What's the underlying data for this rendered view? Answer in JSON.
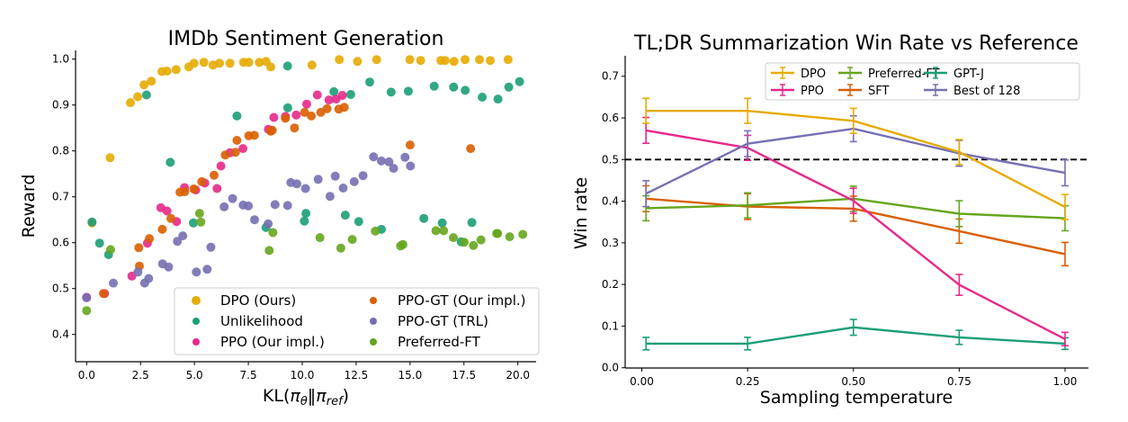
{
  "chart_data": [
    {
      "type": "scatter",
      "title": "IMDb Sentiment Generation",
      "xlabel": "KL(π_θ‖π_ref)",
      "ylabel": "Reward",
      "xlim": [
        -0.8,
        20.8
      ],
      "ylim": [
        0.34,
        1.02
      ],
      "xticks": [
        0.0,
        2.5,
        5.0,
        7.5,
        10.0,
        12.5,
        15.0,
        17.5,
        20.0
      ],
      "xtick_labels": [
        "0.0",
        "2.5",
        "5.0",
        "7.5",
        "10.0",
        "12.5",
        "15.0",
        "17.5",
        "20.0"
      ],
      "yticks": [
        0.4,
        0.5,
        0.6,
        0.7,
        0.8,
        0.9,
        1.0
      ],
      "ytick_labels": [
        "0.4",
        "0.5",
        "0.6",
        "0.7",
        "0.8",
        "0.9",
        "1.0"
      ],
      "grid": false,
      "legend_placement": "lower-right",
      "legend_columns": 2,
      "series": [
        {
          "name": "DPO (Ours)",
          "color": "#E6AB02",
          "x": [
            0.25,
            1.09,
            2.03,
            2.37,
            2.66,
            3.0,
            3.49,
            3.73,
            4.15,
            4.74,
            4.98,
            5.44,
            5.86,
            6.16,
            6.65,
            7.28,
            7.52,
            8.01,
            8.32,
            8.54,
            10.45,
            11.72,
            12.56,
            13.45,
            14.99,
            15.49,
            16.43,
            16.63,
            17.04,
            17.55,
            18.22,
            18.72,
            19.55
          ],
          "y": [
            0.643,
            0.785,
            0.905,
            0.918,
            0.944,
            0.952,
            0.973,
            0.974,
            0.977,
            0.983,
            0.991,
            0.993,
            0.987,
            0.991,
            0.991,
            0.993,
            0.993,
            0.993,
            0.995,
            0.983,
            0.987,
            0.999,
            0.995,
            0.999,
            0.999,
            0.997,
            0.997,
            0.997,
            0.995,
            0.999,
            0.999,
            0.997,
            0.999
          ]
        },
        {
          "name": "Unlikelihood",
          "color": "#1B9E77",
          "x": [
            0.25,
            0.6,
            1.02,
            2.78,
            3.88,
            4.95,
            6.97,
            8.32,
            9.32,
            9.33,
            10.1,
            10.17,
            11.47,
            12.0,
            12.25,
            12.62,
            13.13,
            13.67,
            14.12,
            14.92,
            15.64,
            16.12,
            16.49,
            17.02,
            17.37,
            17.56,
            17.87,
            18.35,
            19.08,
            19.58,
            20.08
          ],
          "y": [
            0.645,
            0.599,
            0.574,
            0.922,
            0.775,
            0.643,
            0.876,
            0.633,
            0.985,
            0.894,
            0.647,
            0.664,
            0.929,
            0.66,
            0.923,
            0.646,
            0.95,
            0.629,
            0.928,
            0.93,
            0.653,
            0.941,
            0.643,
            0.939,
            0.602,
            0.932,
            0.644,
            0.917,
            0.913,
            0.939,
            0.951
          ]
        },
        {
          "name": "PPO (Our impl.)",
          "color": "#E7298A",
          "x": [
            0.0,
            0.83,
            2.1,
            2.82,
            3.44,
            3.73,
            4.17,
            4.54,
            5.06,
            5.48,
            6.05,
            6.23,
            6.65,
            7.25,
            8.43,
            8.68,
            9.22,
            9.72,
            10.21,
            10.7,
            11.24,
            11.57,
            11.86
          ],
          "y": [
            0.481,
            0.489,
            0.527,
            0.599,
            0.676,
            0.669,
            0.646,
            0.72,
            0.715,
            0.73,
            0.718,
            0.767,
            0.796,
            0.805,
            0.847,
            0.873,
            0.875,
            0.878,
            0.902,
            0.922,
            0.911,
            0.913,
            0.921
          ]
        },
        {
          "name": "PPO-GT (Our impl.)",
          "color": "#D95F02",
          "x": [
            0.78,
            2.42,
            2.45,
            2.91,
            3.51,
            3.91,
            4.33,
            4.55,
            4.97,
            5.34,
            5.91,
            6.43,
            6.9,
            6.97,
            7.52,
            7.78,
            8.54,
            8.61,
            9.22,
            9.64,
            10.11,
            10.42,
            10.86,
            11.15,
            11.7,
            11.95,
            15.0,
            17.81
          ],
          "y": [
            0.489,
            0.589,
            0.549,
            0.609,
            0.629,
            0.653,
            0.71,
            0.711,
            0.717,
            0.733,
            0.747,
            0.791,
            0.797,
            0.823,
            0.833,
            0.834,
            0.843,
            0.845,
            0.871,
            0.85,
            0.884,
            0.876,
            0.884,
            0.892,
            0.891,
            0.895,
            0.813,
            0.805
          ]
        },
        {
          "name": "PPO-GT (TRL)",
          "color": "#7570B3",
          "x": [
            0.0,
            1.24,
            2.38,
            2.69,
            2.88,
            3.52,
            3.8,
            4.21,
            4.46,
            5.09,
            5.59,
            5.76,
            6.38,
            6.77,
            7.26,
            7.5,
            7.79,
            8.42,
            8.74,
            9.32,
            9.47,
            9.75,
            10.15,
            10.74,
            11.29,
            11.53,
            11.9,
            12.41,
            12.82,
            13.31,
            13.67,
            14.02,
            14.24,
            14.77,
            15.02
          ],
          "y": [
            0.48,
            0.512,
            0.536,
            0.512,
            0.522,
            0.554,
            0.547,
            0.603,
            0.615,
            0.536,
            0.542,
            0.59,
            0.678,
            0.696,
            0.682,
            0.68,
            0.65,
            0.641,
            0.683,
            0.681,
            0.731,
            0.728,
            0.718,
            0.738,
            0.701,
            0.745,
            0.719,
            0.733,
            0.746,
            0.787,
            0.778,
            0.776,
            0.762,
            0.786,
            0.767
          ]
        },
        {
          "name": "Preferred-FT",
          "color": "#66A61E",
          "x": [
            0.0,
            1.11,
            5.24,
            5.3,
            8.47,
            8.64,
            10.82,
            11.79,
            12.32,
            13.39,
            14.56,
            14.67,
            16.2,
            16.56,
            17.01,
            17.51,
            17.94,
            18.29,
            19.02,
            19.06,
            19.62,
            20.23
          ],
          "y": [
            0.452,
            0.585,
            0.664,
            0.645,
            0.583,
            0.622,
            0.611,
            0.588,
            0.607,
            0.625,
            0.593,
            0.596,
            0.626,
            0.626,
            0.611,
            0.601,
            0.594,
            0.606,
            0.62,
            0.62,
            0.613,
            0.618
          ]
        }
      ]
    },
    {
      "type": "line",
      "title": "TL;DR Summarization Win Rate vs Reference",
      "xlabel": "Sampling temperature",
      "ylabel": "Win rate",
      "xlim": [
        -0.04,
        1.04
      ],
      "ylim": [
        0.0,
        0.75
      ],
      "xticks": [
        0.0,
        0.25,
        0.5,
        0.75,
        1.0
      ],
      "xtick_labels": [
        "0.00",
        "0.25",
        "0.50",
        "0.75",
        "1.00"
      ],
      "yticks": [
        0.0,
        0.1,
        0.2,
        0.3,
        0.4,
        0.5,
        0.6,
        0.7
      ],
      "ytick_labels": [
        "0.0",
        "0.1",
        "0.2",
        "0.3",
        "0.4",
        "0.5",
        "0.6",
        "0.7"
      ],
      "grid": false,
      "reference_line": {
        "y": 0.5,
        "style": "dashed",
        "color": "#000000"
      },
      "legend_placement": "top-right",
      "legend_columns": 3,
      "x": [
        0.01,
        0.25,
        0.5,
        0.75,
        1.0
      ],
      "series": [
        {
          "name": "DPO",
          "color": "#E6AB02",
          "values": [
            0.617,
            0.617,
            0.593,
            0.518,
            0.386
          ],
          "errors": [
            0.03,
            0.03,
            0.03,
            0.03,
            0.03
          ]
        },
        {
          "name": "PPO",
          "color": "#E7298A",
          "values": [
            0.57,
            0.528,
            0.401,
            0.199,
            0.069
          ],
          "errors": [
            0.031,
            0.03,
            0.03,
            0.025,
            0.016
          ]
        },
        {
          "name": "Preferred-FT",
          "color": "#66A61E",
          "values": [
            0.383,
            0.39,
            0.406,
            0.37,
            0.359
          ],
          "errors": [
            0.03,
            0.03,
            0.03,
            0.031,
            0.03
          ]
        },
        {
          "name": "SFT",
          "color": "#D95F02",
          "values": [
            0.406,
            0.387,
            0.382,
            0.328,
            0.273
          ],
          "errors": [
            0.031,
            0.031,
            0.03,
            0.029,
            0.028
          ]
        },
        {
          "name": "GPT-J",
          "color": "#1B9E77",
          "values": [
            0.058,
            0.058,
            0.097,
            0.073,
            0.058
          ],
          "errors": [
            0.015,
            0.015,
            0.019,
            0.017,
            0.014
          ]
        },
        {
          "name": "Best of 128",
          "color": "#7570B3",
          "values": [
            0.418,
            0.538,
            0.574,
            0.515,
            0.468
          ],
          "errors": [
            0.031,
            0.031,
            0.031,
            0.031,
            0.031
          ]
        }
      ]
    }
  ]
}
